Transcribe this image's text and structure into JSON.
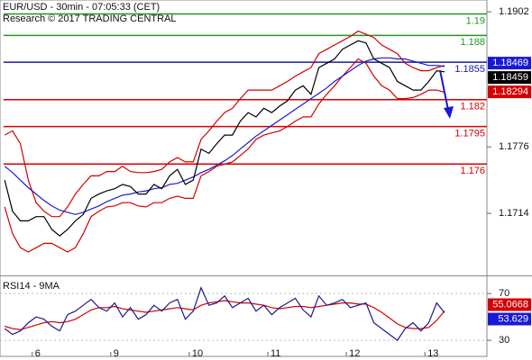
{
  "chart_data": [
    {
      "type": "line",
      "title": "EUR/USD - 30min - 07:05:33 (CET)",
      "subtitle": "Research © 2017 TRADING CENTRAL",
      "x": [
        -0.35,
        -0.25,
        -0.15,
        -0.05,
        0.05,
        0.15,
        0.25,
        0.35,
        0.45,
        0.55,
        0.65,
        0.75,
        0.85,
        0.95,
        1.05,
        1.15,
        1.25,
        1.35,
        1.45,
        1.55,
        1.65,
        1.75,
        1.85,
        1.95,
        2.05,
        2.15,
        2.25,
        2.35,
        2.45,
        2.55,
        2.65,
        2.75,
        2.85,
        2.95,
        3.05,
        3.15,
        3.25,
        3.35,
        3.45,
        3.55,
        3.65,
        3.75,
        3.85,
        3.95,
        4.05,
        4.15,
        4.25,
        4.35,
        4.45,
        4.55,
        4.65,
        4.75,
        4.85,
        4.95,
        5.05,
        5.15,
        5.25
      ],
      "series": [
        {
          "color": "#d40000",
          "values": [
            1.1787,
            1.1791,
            1.1779,
            1.1745,
            1.1724,
            1.1716,
            1.1711,
            1.1711,
            1.172,
            1.1732,
            1.1741,
            1.1749,
            1.1749,
            1.1753,
            1.1753,
            1.1758,
            1.1753,
            1.1752,
            1.1752,
            1.1753,
            1.1755,
            1.1762,
            1.1766,
            1.1762,
            1.1762,
            1.1783,
            1.1791,
            1.18,
            1.1808,
            1.1812,
            1.1821,
            1.1829,
            1.1829,
            1.1829,
            1.1829,
            1.1833,
            1.1837,
            1.1842,
            1.1846,
            1.185,
            1.1863,
            1.1867,
            1.1871,
            1.1875,
            1.1879,
            1.1884,
            1.1881,
            1.1878,
            1.1871,
            1.1867,
            1.1863,
            1.1854,
            1.185,
            1.1847,
            1.1847,
            1.185,
            1.1852
          ]
        },
        {
          "color": "#d40000",
          "values": [
            1.172,
            1.1695,
            1.1682,
            1.1678,
            1.1682,
            1.1686,
            1.1686,
            1.1682,
            1.1678,
            1.1682,
            1.1695,
            1.1711,
            1.1716,
            1.172,
            1.1721,
            1.1724,
            1.1724,
            1.1721,
            1.172,
            1.1724,
            1.1724,
            1.1728,
            1.173,
            1.1728,
            1.1728,
            1.1749,
            1.1753,
            1.1758,
            1.176,
            1.1762,
            1.1768,
            1.1774,
            1.1783,
            1.1787,
            1.1789,
            1.1791,
            1.1795,
            1.18,
            1.1804,
            1.1804,
            1.1816,
            1.1825,
            1.1833,
            1.1842,
            1.185,
            1.1858,
            1.1854,
            1.1842,
            1.1833,
            1.1829,
            1.1821,
            1.1821,
            1.1822,
            1.1825,
            1.1829,
            1.1829,
            1.1827
          ]
        },
        {
          "color": "#1a1ad4",
          "values": [
            1.1758,
            1.1752,
            1.1745,
            1.1738,
            1.1732,
            1.1726,
            1.1721,
            1.1717,
            1.1715,
            1.1713,
            1.1715,
            1.1718,
            1.1721,
            1.1725,
            1.1728,
            1.1731,
            1.1732,
            1.1734,
            1.1735,
            1.1737,
            1.1738,
            1.1741,
            1.1742,
            1.1745,
            1.1748,
            1.1752,
            1.1755,
            1.1759,
            1.1763,
            1.1768,
            1.1774,
            1.178,
            1.1786,
            1.1791,
            1.1796,
            1.1801,
            1.1806,
            1.1811,
            1.1816,
            1.1821,
            1.1826,
            1.1831,
            1.1837,
            1.1842,
            1.1847,
            1.1852,
            1.1856,
            1.1858,
            1.1859,
            1.1859,
            1.1858,
            1.1858,
            1.1856,
            1.1854,
            1.1852,
            1.1852,
            1.1851
          ]
        },
        {
          "color": "#000000",
          "values": [
            1.1745,
            1.1716,
            1.1707,
            1.1707,
            1.1711,
            1.1711,
            1.1699,
            1.1693,
            1.1699,
            1.1707,
            1.1713,
            1.1728,
            1.1732,
            1.1735,
            1.1737,
            1.1741,
            1.1739,
            1.1732,
            1.1732,
            1.1741,
            1.1737,
            1.1749,
            1.1755,
            1.1741,
            1.1745,
            1.1774,
            1.177,
            1.1779,
            1.1787,
            1.1787,
            1.18,
            1.1808,
            1.1804,
            1.1812,
            1.1808,
            1.1814,
            1.1819,
            1.1829,
            1.1833,
            1.1825,
            1.185,
            1.1854,
            1.1858,
            1.1867,
            1.1871,
            1.1875,
            1.1873,
            1.1858,
            1.1854,
            1.185,
            1.1837,
            1.1833,
            1.1829,
            1.1829,
            1.1837,
            1.1847,
            1.1846
          ]
        }
      ],
      "levels": [
        {
          "value": 1.19,
          "color": "#1e9a1e"
        },
        {
          "value": 1.188,
          "color": "#1e9a1e"
        },
        {
          "value": 1.1855,
          "color": "#1a1aa0"
        },
        {
          "value": 1.182,
          "color": "#d40000"
        },
        {
          "value": 1.1795,
          "color": "#d40000"
        },
        {
          "value": 1.176,
          "color": "#d40000"
        }
      ],
      "tags": [
        {
          "value": 1.18469,
          "color": "#1a1ad4"
        },
        {
          "value": 1.18459,
          "color": "#000000"
        },
        {
          "value": 1.18294,
          "color": "#d40000"
        }
      ],
      "xlim": [
        -0.41,
        5.79
      ],
      "ylim": [
        1.1657,
        1.1913
      ],
      "yticks": [
        1.1714,
        1.1776,
        1.1902
      ]
    },
    {
      "type": "line",
      "title": "RSI14 - 9MA",
      "x": [
        -0.35,
        -0.25,
        -0.15,
        -0.05,
        0.05,
        0.15,
        0.25,
        0.35,
        0.45,
        0.55,
        0.65,
        0.75,
        0.85,
        0.95,
        1.05,
        1.15,
        1.25,
        1.35,
        1.45,
        1.55,
        1.65,
        1.75,
        1.85,
        1.95,
        2.05,
        2.15,
        2.25,
        2.35,
        2.45,
        2.55,
        2.65,
        2.75,
        2.85,
        2.95,
        3.05,
        3.15,
        3.25,
        3.35,
        3.45,
        3.55,
        3.65,
        3.75,
        3.85,
        3.95,
        4.05,
        4.15,
        4.25,
        4.35,
        4.45,
        4.55,
        4.65,
        4.75,
        4.85,
        4.95,
        5.05,
        5.15,
        5.25
      ],
      "series": [
        {
          "color": "#d40000",
          "values": [
            42,
            40,
            39,
            41,
            43,
            45,
            46,
            45,
            46,
            48,
            52,
            56,
            58,
            58,
            59,
            57,
            56,
            55,
            54,
            55,
            56,
            57,
            58,
            57,
            56,
            60,
            62,
            63,
            64,
            63,
            62,
            62,
            61,
            60,
            58,
            57,
            58,
            59,
            59,
            58,
            59,
            60,
            61,
            62,
            62,
            61,
            61,
            58,
            54,
            49,
            44,
            41,
            40,
            40,
            41,
            47,
            55.1
          ]
        },
        {
          "color": "#1a1a8c",
          "values": [
            40,
            35,
            38,
            45,
            50,
            48,
            42,
            38,
            52,
            55,
            60,
            65,
            58,
            55,
            62,
            50,
            58,
            48,
            52,
            60,
            55,
            62,
            65,
            48,
            55,
            75,
            60,
            62,
            68,
            58,
            62,
            66,
            55,
            60,
            52,
            58,
            62,
            66,
            56,
            50,
            68,
            60,
            62,
            65,
            58,
            60,
            62,
            45,
            40,
            35,
            30,
            40,
            45,
            38,
            45,
            62,
            53.6
          ]
        }
      ],
      "tags": [
        {
          "value": 55.0668,
          "color": "#d40000"
        },
        {
          "value": 53.629,
          "color": "#1a1ad4"
        }
      ],
      "xlim": [
        -0.41,
        5.79
      ],
      "xticks": [
        {
          "value": 0,
          "label": "6"
        },
        {
          "value": 1,
          "label": "9"
        },
        {
          "value": 2,
          "label": "10"
        },
        {
          "value": 3,
          "label": "11"
        },
        {
          "value": 4,
          "label": "12"
        },
        {
          "value": 5,
          "label": "13"
        }
      ],
      "ylim": [
        17,
        84
      ],
      "yticks": [
        30,
        70
      ],
      "grid": true
    }
  ]
}
